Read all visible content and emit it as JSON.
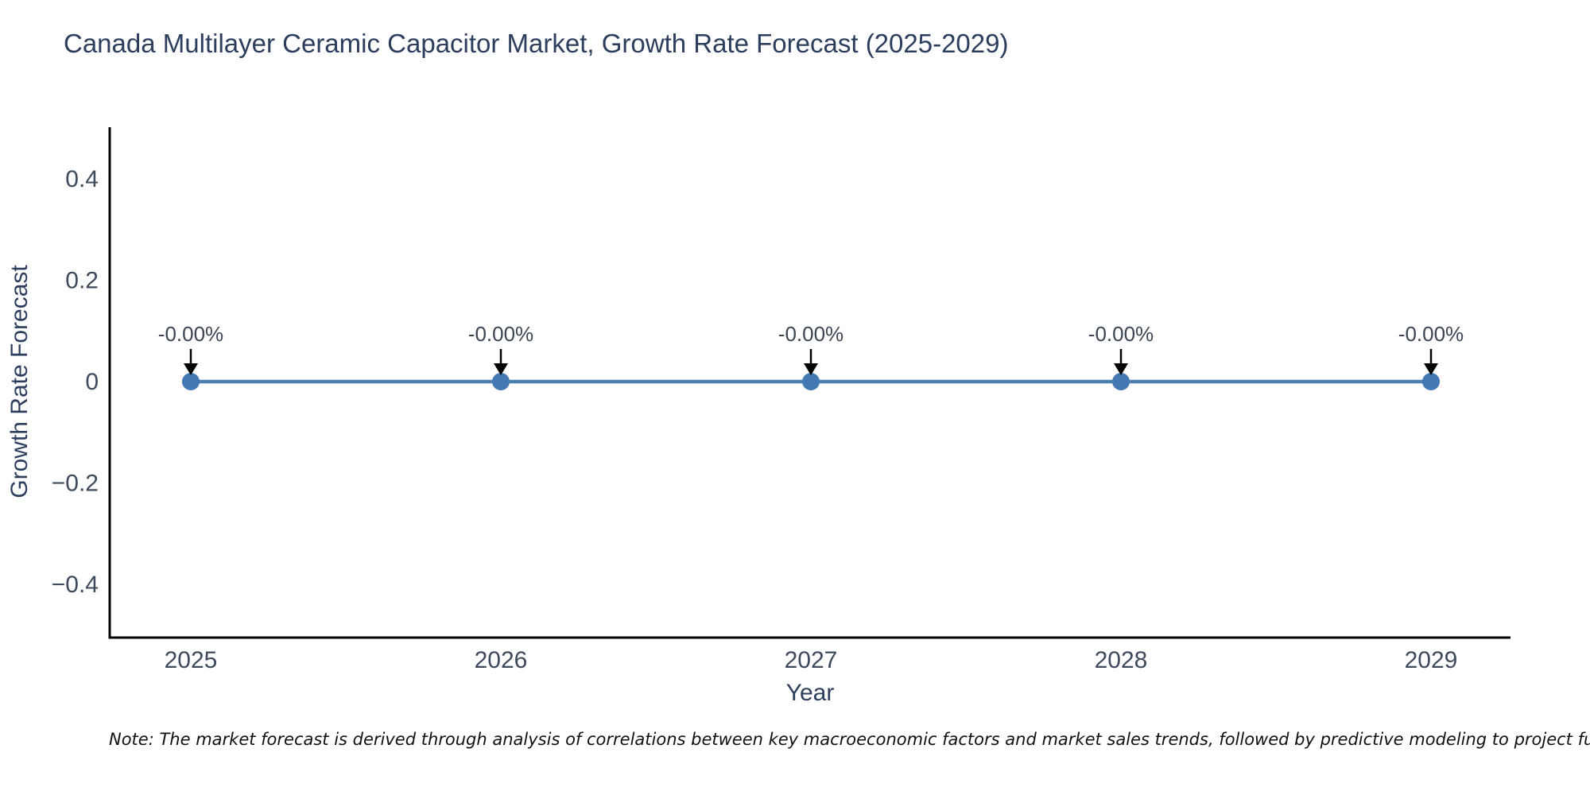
{
  "chart_data": {
    "type": "line",
    "title": "Canada Multilayer Ceramic Capacitor Market, Growth Rate Forecast (2025-2029)",
    "xlabel": "Year",
    "ylabel": "Growth Rate Forecast",
    "x": [
      2025,
      2026,
      2027,
      2028,
      2029
    ],
    "y": [
      0,
      0,
      0,
      0,
      0
    ],
    "point_labels": [
      "-0.00%",
      "-0.00%",
      "-0.00%",
      "-0.00%",
      "-0.00%"
    ],
    "xticks": [
      "2025",
      "2026",
      "2027",
      "2028",
      "2029"
    ],
    "yticks": [
      0.4,
      0.2,
      0,
      -0.2,
      -0.4
    ],
    "ytick_labels": [
      "0.4",
      "0.2",
      "0",
      "−0.2",
      "−0.4"
    ],
    "ylim": [
      -0.505,
      0.505
    ],
    "grid": false,
    "legend": "none",
    "colors": {
      "line": "#4d80b2",
      "marker": "#4478b4",
      "axis": "#000000",
      "annotation_arrow": "#000000",
      "annotation_text": "#3b4554",
      "tick_text": "#3d4a5c",
      "title_text": "#2c3e5d"
    }
  },
  "note": "Note: The market forecast is derived through analysis of correlations between key macroeconomic factors and market sales trends, followed by predictive modeling to project future sales."
}
